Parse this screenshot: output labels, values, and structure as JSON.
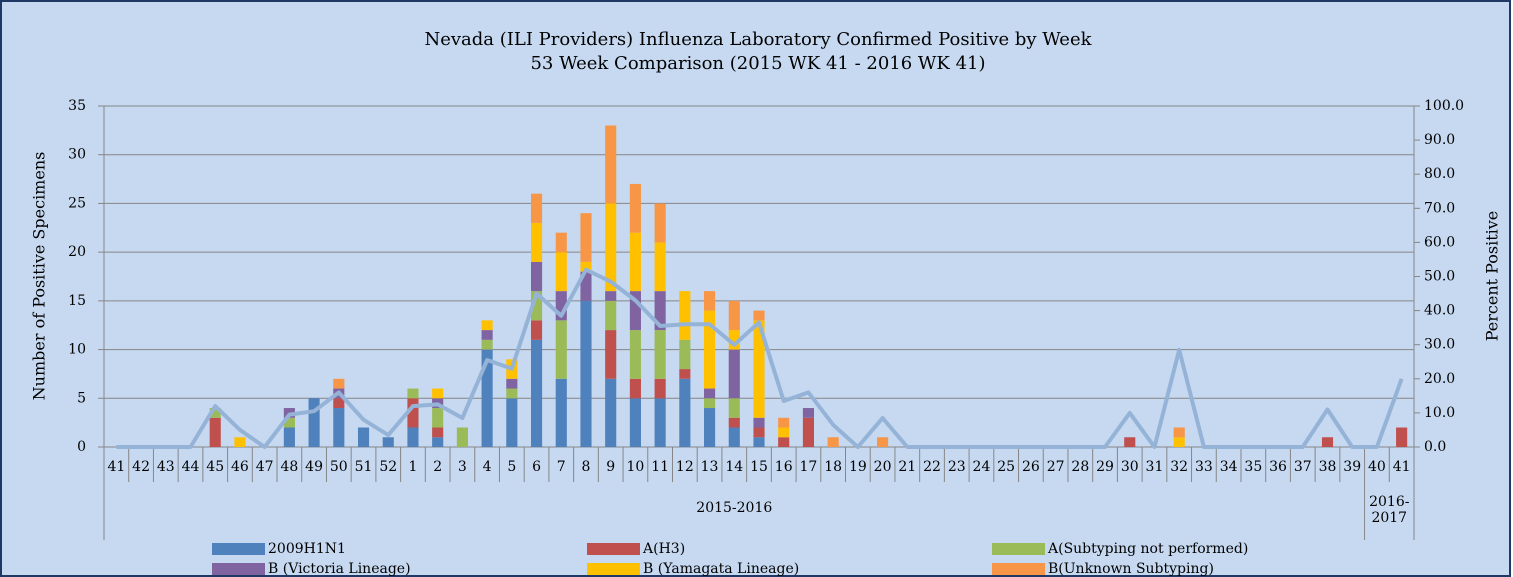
{
  "chart_data": {
    "type": "stacked_bar_line",
    "title": "Nevada (ILI Providers) Influenza Laboratory Confirmed Positive by Week",
    "subtitle": "53 Week Comparison (2015 WK 41 - 2016 WK 41)",
    "y_label": "Number of Positive Specimens",
    "y2_label": "Percent Positive",
    "categories": [
      "41",
      "42",
      "43",
      "44",
      "45",
      "46",
      "47",
      "48",
      "49",
      "50",
      "51",
      "52",
      "1",
      "2",
      "3",
      "4",
      "5",
      "6",
      "7",
      "8",
      "9",
      "10",
      "11",
      "12",
      "13",
      "14",
      "15",
      "16",
      "17",
      "18",
      "19",
      "20",
      "21",
      "22",
      "23",
      "24",
      "25",
      "26",
      "27",
      "28",
      "29",
      "30",
      "31",
      "32",
      "33",
      "34",
      "35",
      "36",
      "37",
      "38",
      "39",
      "40",
      "41"
    ],
    "category_groups": [
      {
        "label": "2015-2016",
        "count": 51
      },
      {
        "label": "2016-2017",
        "count": 2
      }
    ],
    "series": [
      {
        "name": "2009H1N1",
        "color": "#4f81bd",
        "values": [
          0,
          0,
          0,
          0,
          0,
          0,
          0,
          2,
          5,
          4,
          2,
          1,
          2,
          1,
          0,
          10,
          5,
          11,
          7,
          15,
          7,
          5,
          5,
          7,
          4,
          2,
          1,
          0,
          0,
          0,
          0,
          0,
          0,
          0,
          0,
          0,
          0,
          0,
          0,
          0,
          0,
          0,
          0,
          0,
          0,
          0,
          0,
          0,
          0,
          0,
          0,
          0,
          0
        ]
      },
      {
        "name": "A(H3)",
        "color": "#c0504d",
        "values": [
          0,
          0,
          0,
          0,
          3,
          0,
          0,
          0,
          0,
          1,
          0,
          0,
          3,
          1,
          0,
          0,
          0,
          2,
          0,
          0,
          5,
          2,
          2,
          1,
          0,
          1,
          1,
          1,
          3,
          0,
          0,
          0,
          0,
          0,
          0,
          0,
          0,
          0,
          0,
          0,
          0,
          1,
          0,
          0,
          0,
          0,
          0,
          0,
          0,
          1,
          0,
          0,
          2
        ]
      },
      {
        "name": "A(Subtyping not performed)",
        "color": "#9bbb59",
        "values": [
          0,
          0,
          0,
          0,
          1,
          0,
          0,
          1,
          0,
          0,
          0,
          0,
          1,
          2,
          2,
          1,
          1,
          3,
          6,
          0,
          3,
          5,
          5,
          3,
          1,
          2,
          0,
          0,
          0,
          0,
          0,
          0,
          0,
          0,
          0,
          0,
          0,
          0,
          0,
          0,
          0,
          0,
          0,
          0,
          0,
          0,
          0,
          0,
          0,
          0,
          0,
          0,
          0
        ]
      },
      {
        "name": "B (Victoria Lineage)",
        "color": "#8064a2",
        "values": [
          0,
          0,
          0,
          0,
          0,
          0,
          0,
          1,
          0,
          1,
          0,
          0,
          0,
          1,
          0,
          1,
          1,
          3,
          3,
          3,
          1,
          4,
          4,
          0,
          1,
          5,
          1,
          0,
          1,
          0,
          0,
          0,
          0,
          0,
          0,
          0,
          0,
          0,
          0,
          0,
          0,
          0,
          0,
          0,
          0,
          0,
          0,
          0,
          0,
          0,
          0,
          0,
          0
        ]
      },
      {
        "name": "B (Yamagata Lineage)",
        "color": "#ffc000",
        "values": [
          0,
          0,
          0,
          0,
          0,
          1,
          0,
          0,
          0,
          0,
          0,
          0,
          0,
          1,
          0,
          1,
          2,
          4,
          4,
          1,
          9,
          6,
          5,
          5,
          8,
          2,
          10,
          1,
          0,
          0,
          0,
          0,
          0,
          0,
          0,
          0,
          0,
          0,
          0,
          0,
          0,
          0,
          0,
          1,
          0,
          0,
          0,
          0,
          0,
          0,
          0,
          0,
          0
        ]
      },
      {
        "name": "B(Unknown Subtyping)",
        "color": "#f79646",
        "values": [
          0,
          0,
          0,
          0,
          0,
          0,
          0,
          0,
          0,
          1,
          0,
          0,
          0,
          0,
          0,
          0,
          0,
          3,
          2,
          5,
          8,
          5,
          4,
          0,
          2,
          3,
          1,
          1,
          0,
          1,
          0,
          1,
          0,
          0,
          0,
          0,
          0,
          0,
          0,
          0,
          0,
          0,
          0,
          1,
          0,
          0,
          0,
          0,
          0,
          0,
          0,
          0,
          0
        ]
      },
      {
        "color": "#95b3d7",
        "axis": "y2",
        "values": [
          0,
          0,
          0,
          0,
          12,
          5,
          0,
          9.5,
          10.5,
          16,
          8,
          3.5,
          12,
          12.5,
          8.5,
          25.5,
          23,
          45,
          38.5,
          52,
          48.5,
          43,
          35.5,
          36,
          36,
          30,
          36.5,
          13.5,
          16,
          6.5,
          0,
          8.5,
          0,
          0,
          0,
          0,
          0,
          0,
          0,
          0,
          0,
          10,
          0,
          28.5,
          0,
          0,
          0,
          0,
          0,
          11,
          0,
          0,
          20
        ]
      }
    ],
    "ylim": [
      0,
      35
    ],
    "yticks": [
      0,
      5,
      10,
      15,
      20,
      25,
      30,
      35
    ],
    "y2lim": [
      0,
      100
    ],
    "y2ticks": [
      {
        "value": 0,
        "label": "0.0"
      },
      {
        "value": 10,
        "label": "10.0"
      },
      {
        "value": 20,
        "label": "20.0"
      },
      {
        "value": 30,
        "label": "30.0"
      },
      {
        "value": 40,
        "label": "40.0"
      },
      {
        "value": 50,
        "label": "50.0"
      },
      {
        "value": 60,
        "label": "60.0"
      },
      {
        "value": 70,
        "label": "70.0"
      },
      {
        "value": 80,
        "label": "80.0"
      },
      {
        "value": 90,
        "label": "90.0"
      },
      {
        "value": 100,
        "label": "100.0"
      }
    ],
    "grid": true
  }
}
